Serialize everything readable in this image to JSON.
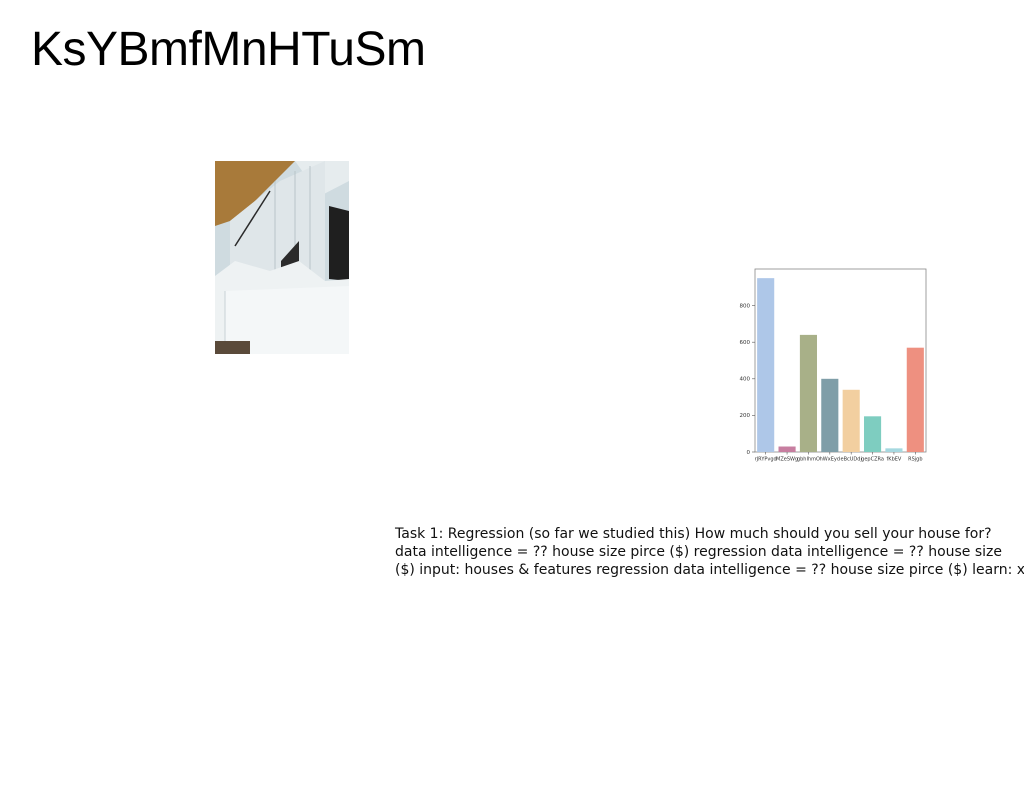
{
  "slide": {
    "title": "KsYBmfMnHTuSm",
    "body_lines": [
      "Task 1: Regression (so far we studied this) How much should you sell your house for?",
      "data intelligence = ?? house size pirce ($) regression data intelligence = ?? house size",
      "($) input: houses & features regression data intelligence = ?? house size pirce ($) learn: x"
    ]
  },
  "photo": {
    "icon": "building-photo",
    "colors": {
      "sky": "#c9d6dc",
      "facade": "#dde5e8",
      "wood": "#a87a3a",
      "shadow": "#2a2a2a"
    }
  },
  "chart_data": {
    "type": "bar",
    "categories": [
      "rJRYPvgd",
      "MZeSWg",
      "gbhIhmO",
      "hWxEyd",
      "eBcUDdj",
      "gepCZRa",
      "fKbEV",
      "RSjgb"
    ],
    "values": [
      950,
      30,
      640,
      400,
      340,
      195,
      20,
      570
    ],
    "colors": [
      "#aec7e8",
      "#c77ea0",
      "#a8b088",
      "#7f9ea8",
      "#f2cfa0",
      "#7ecdc0",
      "#a6d8e0",
      "#ee9080"
    ],
    "ylim": [
      0,
      1000
    ],
    "yticks": [
      0,
      200,
      400,
      600,
      800
    ],
    "title": "",
    "xlabel": "",
    "ylabel": "",
    "grid": false,
    "legend": "none"
  }
}
